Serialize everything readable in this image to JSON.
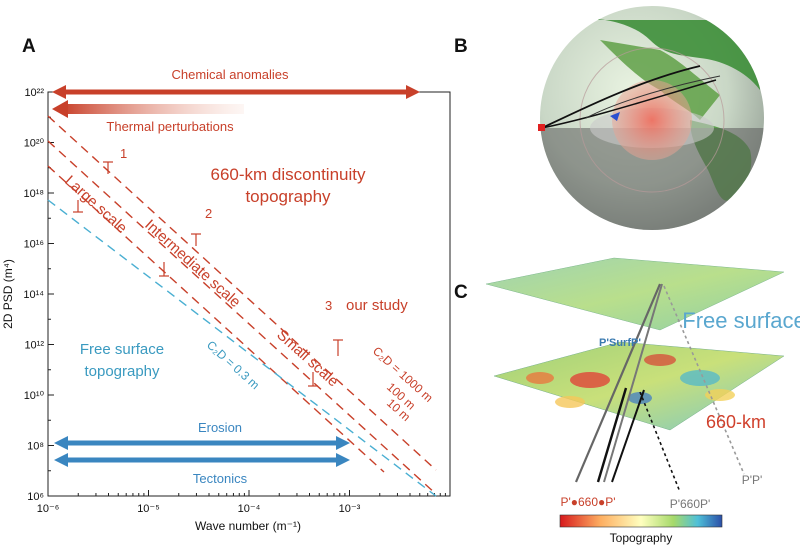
{
  "panels": {
    "a": "A",
    "b": "B",
    "c": "C"
  },
  "colors": {
    "red": "#c8402a",
    "blue": "#3a9ac0",
    "cyan": "#4aafd2",
    "gray": "#888888"
  },
  "chart_data": {
    "type": "line",
    "xlabel": "Wave number (m⁻¹)",
    "ylabel": "2D PSD (m⁴)",
    "xscale": "log",
    "yscale": "log",
    "xlim": [
      1e-06,
      0.01
    ],
    "ylim": [
      1000000.0,
      1e+22
    ],
    "x_tick_labels": [
      "10⁻⁶",
      "10⁻⁵",
      "10⁻⁴",
      "10⁻³"
    ],
    "y_tick_labels": [
      "10⁶",
      "10⁸",
      "10¹⁰",
      "10¹²",
      "10¹⁴",
      "10¹⁶",
      "10¹⁸",
      "10²⁰",
      "10²²"
    ],
    "series": [
      {
        "name": "C₂D = 1000 m",
        "color": "#c8402a",
        "points": [
          [
            1e-06,
            3e+20
          ],
          [
            0.006,
            10000000.0
          ]
        ]
      },
      {
        "name": "100 m",
        "color": "#c8402a",
        "points": [
          [
            1e-06,
            3e+19
          ],
          [
            0.006,
            1000000.0
          ]
        ]
      },
      {
        "name": "10 m",
        "color": "#c8402a",
        "points": [
          [
            1e-06,
            3e+18
          ],
          [
            0.002,
            1000000.0
          ]
        ]
      },
      {
        "name": "C₂D = 0.3 m",
        "color": "#4aafd2",
        "points": [
          [
            1e-06,
            1e+17
          ],
          [
            0.006,
            1000000.0
          ]
        ]
      }
    ],
    "bands": {
      "chemical": {
        "label": "Chemical anomalies",
        "x": [
          1e-06,
          0.005
        ]
      },
      "thermal": {
        "label": "Thermal perturbations",
        "x": [
          1e-06,
          0.0001
        ]
      },
      "erosion": {
        "label": "Erosion",
        "x": [
          1e-06,
          0.001
        ]
      },
      "tectonics": {
        "label": "Tectonics",
        "x": [
          1e-06,
          0.001
        ]
      }
    },
    "annotations": {
      "n1": "1",
      "n2": "2",
      "n3": "3",
      "large": "Large scale",
      "intermediate": "Intermediate scale",
      "small": "Small scale",
      "discontinuity_line1": "660-km discontinuity",
      "discontinuity_line2": "topography",
      "our_study": "our study",
      "free_line1": "Free surface",
      "free_line2": "topography",
      "c2d_low": "C₂D = 0.3 m",
      "c2d_high": "C₂D = 1000 m",
      "c100": "100 m",
      "c10": "10 m"
    }
  },
  "panel_c": {
    "free_surface": "Free surface",
    "km660": "660-km",
    "psurfp": "P'SurfP'",
    "p660p_left": "P'●660●P'",
    "p660p_right": "P'660P'",
    "pp": "P'P'",
    "colorbar_label": "Topography"
  }
}
